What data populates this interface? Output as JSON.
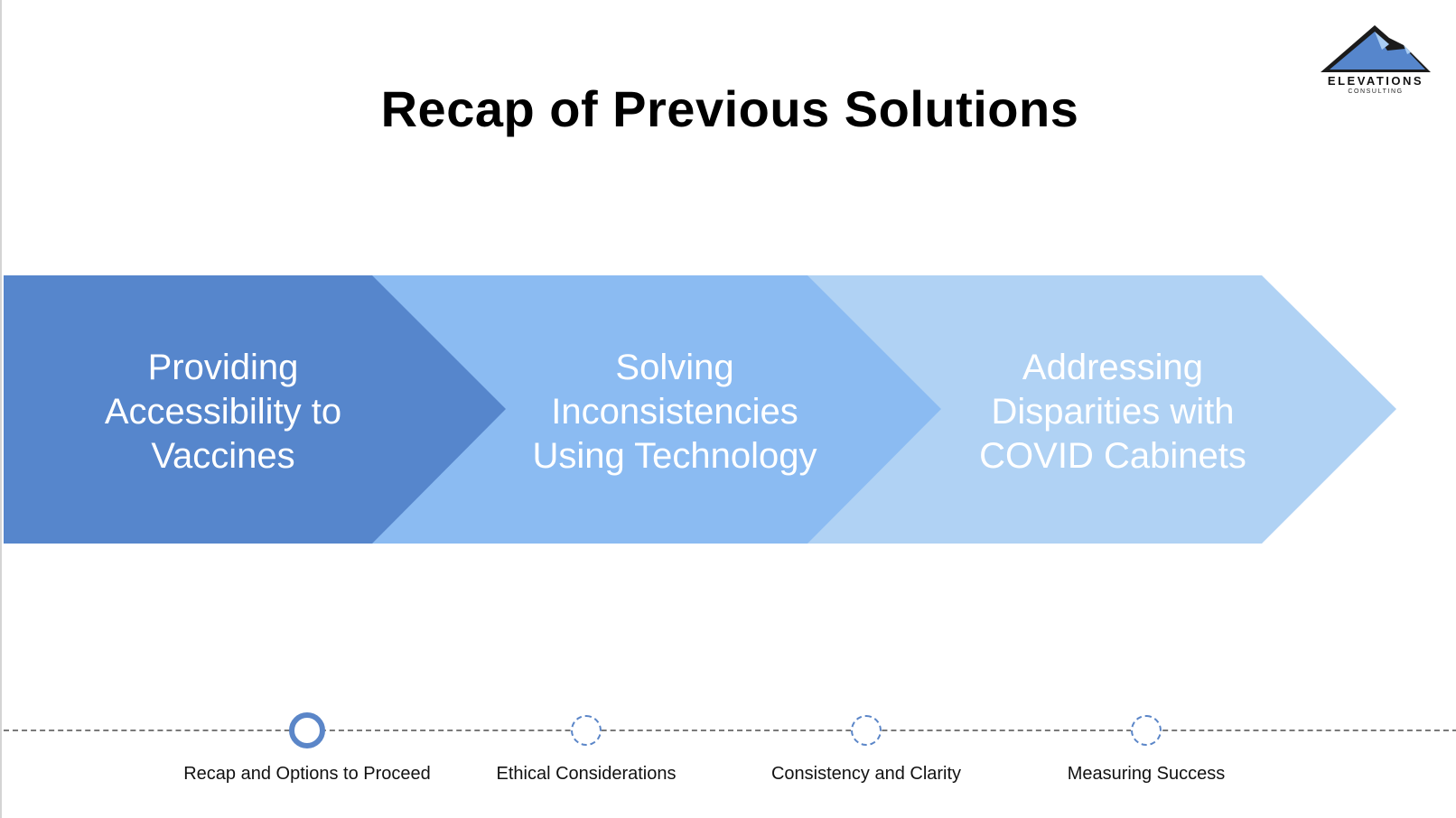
{
  "slide": {
    "title": "Recap of Previous Solutions"
  },
  "logo": {
    "name": "ELEVATIONS",
    "subtitle": "CONSULTING",
    "icon": "mountain-icon"
  },
  "steps": [
    {
      "label": "Providing Accessibility to Vaccines",
      "lines": [
        "Providing",
        "Accessibility to",
        "Vaccines"
      ],
      "color": "#5686cc"
    },
    {
      "label": "Solving Inconsistencies Using Technology",
      "lines": [
        "Solving",
        "Inconsistencies",
        "Using Technology"
      ],
      "color": "#8bbbf2"
    },
    {
      "label": "Addressing Disparities with COVID Cabinets",
      "lines": [
        "Addressing",
        "Disparities with",
        "COVID Cabinets"
      ],
      "color": "#b0d2f4"
    }
  ],
  "timeline": {
    "items": [
      {
        "label": "Recap and Options to Proceed",
        "state": "active"
      },
      {
        "label": "Ethical Considerations",
        "state": "pending"
      },
      {
        "label": "Consistency and Clarity",
        "state": "pending"
      },
      {
        "label": "Measuring Success",
        "state": "pending"
      }
    ],
    "accent": "#5b86c8"
  }
}
